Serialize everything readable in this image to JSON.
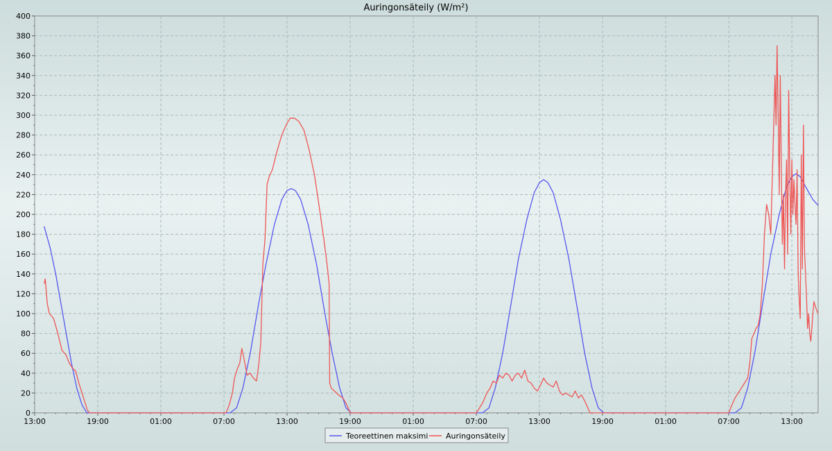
{
  "chart_data": {
    "type": "line",
    "title": "Auringonsäteily (W/m²)",
    "xlabel": "",
    "ylabel": "",
    "ylim": [
      0,
      400
    ],
    "xlim": [
      0,
      74.5
    ],
    "yticks": [
      0,
      20,
      40,
      60,
      80,
      100,
      120,
      140,
      160,
      180,
      200,
      220,
      240,
      260,
      280,
      300,
      320,
      340,
      360,
      380,
      400
    ],
    "xticks": [
      {
        "x": 0,
        "label": "13:00"
      },
      {
        "x": 6,
        "label": "19:00"
      },
      {
        "x": 12,
        "label": "01:00"
      },
      {
        "x": 18,
        "label": "07:00"
      },
      {
        "x": 24,
        "label": "13:00"
      },
      {
        "x": 30,
        "label": "19:00"
      },
      {
        "x": 36,
        "label": "01:00"
      },
      {
        "x": 42,
        "label": "07:00"
      },
      {
        "x": 48,
        "label": "13:00"
      },
      {
        "x": 54,
        "label": "19:00"
      },
      {
        "x": 60,
        "label": "01:00"
      },
      {
        "x": 66,
        "label": "07:00"
      },
      {
        "x": 72,
        "label": "13:00"
      }
    ],
    "grid": true,
    "legend": "bottom-center",
    "series": [
      {
        "name": "Teoreettinen maksimi",
        "color": "#5555ee",
        "points": [
          [
            0.9,
            188
          ],
          [
            1.5,
            165
          ],
          [
            2.0,
            140
          ],
          [
            2.5,
            110
          ],
          [
            3.0,
            80
          ],
          [
            3.5,
            50
          ],
          [
            4.0,
            25
          ],
          [
            4.5,
            8
          ],
          [
            4.9,
            1
          ],
          [
            5.0,
            0
          ],
          [
            18.6,
            0
          ],
          [
            19.2,
            5
          ],
          [
            19.8,
            25
          ],
          [
            20.5,
            60
          ],
          [
            21.3,
            110
          ],
          [
            22.0,
            150
          ],
          [
            22.8,
            190
          ],
          [
            23.5,
            215
          ],
          [
            24.0,
            224
          ],
          [
            24.4,
            226
          ],
          [
            24.8,
            224
          ],
          [
            25.3,
            215
          ],
          [
            26.0,
            190
          ],
          [
            26.8,
            150
          ],
          [
            27.6,
            100
          ],
          [
            28.3,
            60
          ],
          [
            29.0,
            25
          ],
          [
            29.6,
            5
          ],
          [
            30.1,
            0
          ],
          [
            42.6,
            0
          ],
          [
            43.2,
            5
          ],
          [
            43.8,
            25
          ],
          [
            44.5,
            60
          ],
          [
            45.3,
            110
          ],
          [
            46.0,
            155
          ],
          [
            46.8,
            195
          ],
          [
            47.5,
            222
          ],
          [
            48.0,
            232
          ],
          [
            48.4,
            235
          ],
          [
            48.8,
            232
          ],
          [
            49.3,
            222
          ],
          [
            50.0,
            195
          ],
          [
            50.8,
            155
          ],
          [
            51.6,
            105
          ],
          [
            52.3,
            60
          ],
          [
            53.0,
            25
          ],
          [
            53.6,
            5
          ],
          [
            54.1,
            0
          ],
          [
            66.6,
            0
          ],
          [
            67.2,
            5
          ],
          [
            67.8,
            25
          ],
          [
            68.5,
            62
          ],
          [
            69.3,
            115
          ],
          [
            70.0,
            160
          ],
          [
            70.8,
            200
          ],
          [
            71.5,
            228
          ],
          [
            72.0,
            238
          ],
          [
            72.4,
            241
          ],
          [
            72.8,
            238
          ],
          [
            73.3,
            228
          ],
          [
            74.0,
            215
          ],
          [
            74.5,
            209
          ]
        ]
      },
      {
        "name": "Auringonsäteily",
        "color": "#ee5555",
        "points": [
          [
            0.9,
            130
          ],
          [
            1.0,
            135
          ],
          [
            1.2,
            110
          ],
          [
            1.4,
            100
          ],
          [
            1.8,
            95
          ],
          [
            2.2,
            80
          ],
          [
            2.6,
            63
          ],
          [
            3.0,
            58
          ],
          [
            3.3,
            50
          ],
          [
            3.6,
            45
          ],
          [
            3.9,
            42
          ],
          [
            4.2,
            30
          ],
          [
            4.5,
            20
          ],
          [
            4.8,
            10
          ],
          [
            5.0,
            3
          ],
          [
            5.2,
            0
          ],
          [
            18.2,
            0
          ],
          [
            18.5,
            8
          ],
          [
            18.8,
            20
          ],
          [
            19.0,
            35
          ],
          [
            19.3,
            45
          ],
          [
            19.5,
            50
          ],
          [
            19.7,
            65
          ],
          [
            19.9,
            55
          ],
          [
            20.2,
            38
          ],
          [
            20.5,
            40
          ],
          [
            20.8,
            35
          ],
          [
            21.1,
            32
          ],
          [
            21.3,
            48
          ],
          [
            21.5,
            70
          ],
          [
            21.7,
            150
          ],
          [
            21.9,
            175
          ],
          [
            22.1,
            230
          ],
          [
            22.3,
            238
          ],
          [
            22.6,
            245
          ],
          [
            23.0,
            262
          ],
          [
            23.5,
            280
          ],
          [
            24.0,
            292
          ],
          [
            24.3,
            297
          ],
          [
            24.7,
            297
          ],
          [
            25.1,
            294
          ],
          [
            25.6,
            285
          ],
          [
            26.1,
            265
          ],
          [
            26.6,
            240
          ],
          [
            27.1,
            205
          ],
          [
            27.5,
            175
          ],
          [
            27.8,
            150
          ],
          [
            28.0,
            130
          ],
          [
            28.05,
            30
          ],
          [
            28.2,
            25
          ],
          [
            28.5,
            22
          ],
          [
            28.9,
            18
          ],
          [
            29.3,
            15
          ],
          [
            29.6,
            10
          ],
          [
            29.8,
            5
          ],
          [
            30.0,
            0
          ],
          [
            42.0,
            0
          ],
          [
            42.3,
            5
          ],
          [
            42.6,
            10
          ],
          [
            43.0,
            20
          ],
          [
            43.3,
            25
          ],
          [
            43.6,
            32
          ],
          [
            43.9,
            30
          ],
          [
            44.2,
            38
          ],
          [
            44.5,
            35
          ],
          [
            44.8,
            40
          ],
          [
            45.1,
            38
          ],
          [
            45.4,
            32
          ],
          [
            45.7,
            38
          ],
          [
            46.0,
            40
          ],
          [
            46.3,
            35
          ],
          [
            46.6,
            43
          ],
          [
            46.9,
            32
          ],
          [
            47.2,
            30
          ],
          [
            47.5,
            25
          ],
          [
            47.8,
            22
          ],
          [
            48.1,
            28
          ],
          [
            48.4,
            35
          ],
          [
            48.7,
            30
          ],
          [
            49.0,
            28
          ],
          [
            49.3,
            26
          ],
          [
            49.6,
            32
          ],
          [
            49.9,
            22
          ],
          [
            50.2,
            18
          ],
          [
            50.5,
            20
          ],
          [
            50.8,
            18
          ],
          [
            51.1,
            16
          ],
          [
            51.4,
            22
          ],
          [
            51.7,
            15
          ],
          [
            52.0,
            18
          ],
          [
            52.3,
            12
          ],
          [
            52.6,
            5
          ],
          [
            52.8,
            0
          ],
          [
            66.0,
            0
          ],
          [
            66.3,
            8
          ],
          [
            66.6,
            15
          ],
          [
            66.9,
            20
          ],
          [
            67.2,
            25
          ],
          [
            67.5,
            30
          ],
          [
            67.8,
            35
          ],
          [
            68.0,
            50
          ],
          [
            68.2,
            75
          ],
          [
            68.4,
            80
          ],
          [
            68.6,
            85
          ],
          [
            68.8,
            88
          ],
          [
            69.0,
            100
          ],
          [
            69.2,
            130
          ],
          [
            69.4,
            180
          ],
          [
            69.6,
            210
          ],
          [
            69.8,
            200
          ],
          [
            70.0,
            180
          ],
          [
            70.2,
            260
          ],
          [
            70.4,
            340
          ],
          [
            70.5,
            290
          ],
          [
            70.6,
            370
          ],
          [
            70.7,
            300
          ],
          [
            70.8,
            220
          ],
          [
            70.9,
            340
          ],
          [
            71.0,
            250
          ],
          [
            71.1,
            170
          ],
          [
            71.2,
            220
          ],
          [
            71.3,
            145
          ],
          [
            71.4,
            220
          ],
          [
            71.5,
            255
          ],
          [
            71.6,
            160
          ],
          [
            71.7,
            325
          ],
          [
            71.8,
            245
          ],
          [
            71.9,
            180
          ],
          [
            72.0,
            255
          ],
          [
            72.1,
            200
          ],
          [
            72.2,
            235
          ],
          [
            72.3,
            210
          ],
          [
            72.4,
            190
          ],
          [
            72.5,
            245
          ],
          [
            72.6,
            140
          ],
          [
            72.7,
            115
          ],
          [
            72.8,
            95
          ],
          [
            72.9,
            260
          ],
          [
            73.0,
            145
          ],
          [
            73.1,
            290
          ],
          [
            73.2,
            165
          ],
          [
            73.3,
            140
          ],
          [
            73.4,
            115
          ],
          [
            73.5,
            85
          ],
          [
            73.6,
            100
          ],
          [
            73.7,
            80
          ],
          [
            73.8,
            72
          ],
          [
            73.9,
            85
          ],
          [
            74.0,
            100
          ],
          [
            74.1,
            112
          ],
          [
            74.3,
            105
          ],
          [
            74.5,
            100
          ]
        ]
      }
    ]
  }
}
